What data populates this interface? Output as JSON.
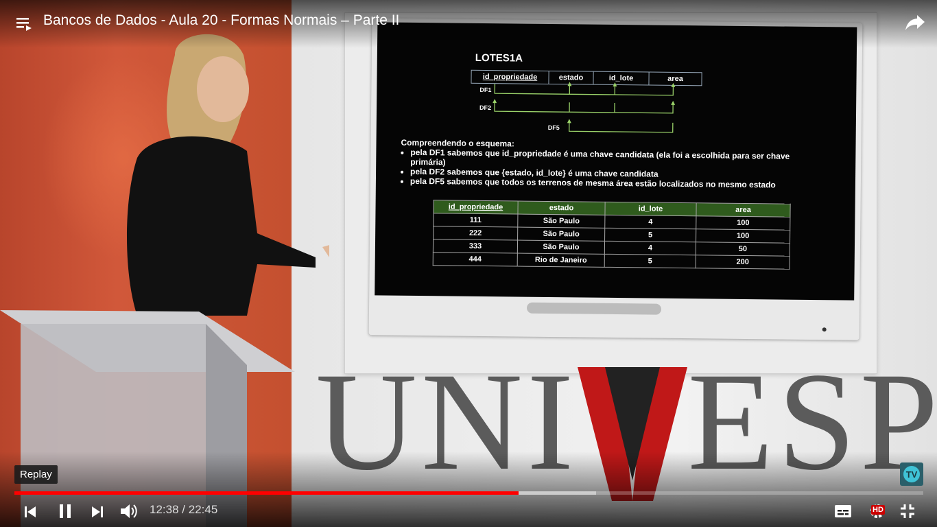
{
  "video": {
    "title": "Bancos de Dados - Aula 20 - Formas Normais – Parte II",
    "current_time": "12:38",
    "separator": "/",
    "duration": "22:45",
    "progress_played_fraction": 0.555,
    "progress_buffered_fraction": 0.64,
    "replay_tooltip": "Replay",
    "hd_badge": "HD"
  },
  "slide": {
    "title": "LOTES1A",
    "schema_columns": [
      "id_propriedade",
      "estado",
      "id_lote",
      "area"
    ],
    "fd_labels": [
      "DF1",
      "DF2",
      "DF5"
    ],
    "intro": "Compreendendo o esquema:",
    "bullets": [
      "pela DF1 sabemos que id_propriedade é uma chave candidata (ela foi a escolhida para ser chave primária)",
      "pela DF2 sabemos que {estado, id_lote} é uma chave candidata",
      "pela DF5 sabemos que todos os terrenos de mesma área estão localizados no mesmo estado"
    ],
    "table": {
      "headers": [
        "id_propriedade",
        "estado",
        "id_lote",
        "area"
      ],
      "rows": [
        [
          "111",
          "São Paulo",
          "4",
          "100"
        ],
        [
          "222",
          "São Paulo",
          "5",
          "100"
        ],
        [
          "333",
          "São Paulo",
          "4",
          "50"
        ],
        [
          "444",
          "Rio de Janeiro",
          "5",
          "200"
        ]
      ]
    }
  },
  "brand": {
    "text_left": "UNI",
    "text_v": "V",
    "text_right": "ESP"
  },
  "icons": {
    "playlist": "playlist-icon",
    "share": "share-icon",
    "prev": "previous-icon",
    "pause": "pause-icon",
    "next": "next-icon",
    "volume": "volume-icon",
    "captions": "captions-icon",
    "settings": "settings-icon",
    "exit_fullscreen": "exit-fullscreen-icon"
  },
  "colors": {
    "progress_played": "#ff0000",
    "table_header_bg": "#2f5b1d",
    "hd_badge_bg": "#cc0000",
    "brand_red": "#c01818"
  }
}
